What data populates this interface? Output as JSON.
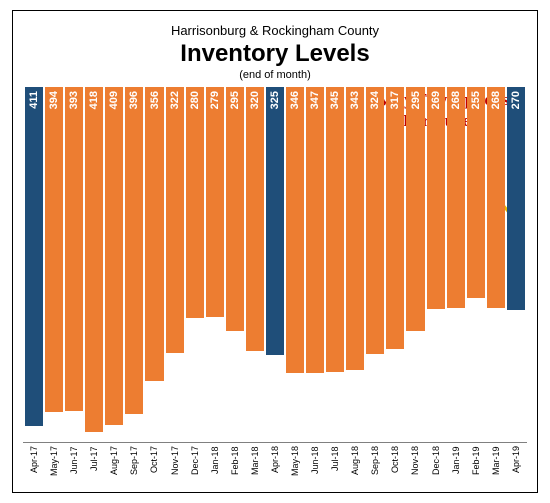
{
  "header": {
    "subtitle1": "Harrisonburg & Rockingham County",
    "title": "Inventory Levels",
    "subtitle2": "(end of month)"
  },
  "annotation": {
    "line1": "Very Few Options",
    "line2": "For Buyers",
    "color": "#c00000",
    "arrow_color": "#e8b800"
  },
  "chart": {
    "type": "bar",
    "max_value": 430,
    "colors": {
      "orange": "#ed7d31",
      "blue": "#1f4e79",
      "value_text": "#ffffff",
      "axis": "#808080",
      "background": "#ffffff"
    },
    "bar_value_fontsize": 11,
    "x_label_fontsize": 9,
    "data": [
      {
        "label": "Apr-17",
        "value": 411,
        "hl": true
      },
      {
        "label": "May-17",
        "value": 394,
        "hl": false
      },
      {
        "label": "Jun-17",
        "value": 393,
        "hl": false
      },
      {
        "label": "Jul-17",
        "value": 418,
        "hl": false
      },
      {
        "label": "Aug-17",
        "value": 409,
        "hl": false
      },
      {
        "label": "Sep-17",
        "value": 396,
        "hl": false
      },
      {
        "label": "Oct-17",
        "value": 356,
        "hl": false
      },
      {
        "label": "Nov-17",
        "value": 322,
        "hl": false
      },
      {
        "label": "Dec-17",
        "value": 280,
        "hl": false
      },
      {
        "label": "Jan-18",
        "value": 279,
        "hl": false
      },
      {
        "label": "Feb-18",
        "value": 295,
        "hl": false
      },
      {
        "label": "Mar-18",
        "value": 320,
        "hl": false
      },
      {
        "label": "Apr-18",
        "value": 325,
        "hl": true
      },
      {
        "label": "May-18",
        "value": 346,
        "hl": false
      },
      {
        "label": "Jun-18",
        "value": 347,
        "hl": false
      },
      {
        "label": "Jul-18",
        "value": 345,
        "hl": false
      },
      {
        "label": "Aug-18",
        "value": 343,
        "hl": false
      },
      {
        "label": "Sep-18",
        "value": 324,
        "hl": false
      },
      {
        "label": "Oct-18",
        "value": 317,
        "hl": false
      },
      {
        "label": "Nov-18",
        "value": 295,
        "hl": false
      },
      {
        "label": "Dec-18",
        "value": 269,
        "hl": false
      },
      {
        "label": "Jan-19",
        "value": 268,
        "hl": false
      },
      {
        "label": "Feb-19",
        "value": 255,
        "hl": false
      },
      {
        "label": "Mar-19",
        "value": 268,
        "hl": false
      },
      {
        "label": "Apr-19",
        "value": 270,
        "hl": true
      }
    ]
  }
}
